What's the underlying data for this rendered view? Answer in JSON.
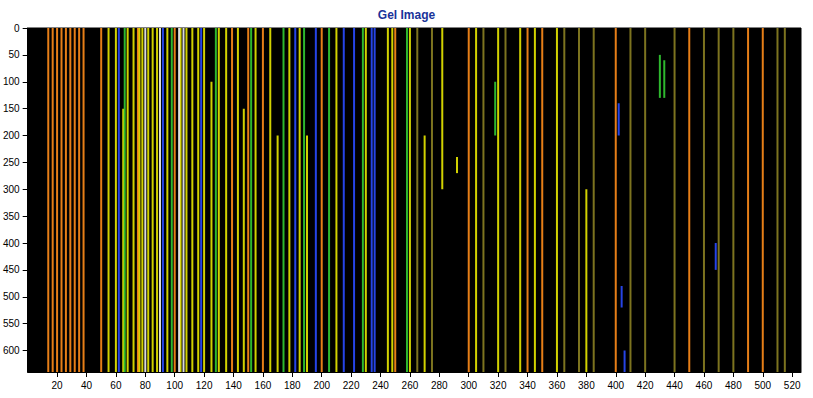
{
  "chart_data": {
    "type": "gel",
    "title": "Gel Image",
    "xlim": [
      0,
      526
    ],
    "ylim": [
      0,
      640
    ],
    "xticks": [
      20,
      40,
      60,
      80,
      100,
      120,
      140,
      160,
      180,
      200,
      220,
      240,
      260,
      280,
      300,
      320,
      340,
      360,
      380,
      400,
      420,
      440,
      460,
      480,
      500,
      520
    ],
    "yticks": [
      0,
      50,
      100,
      150,
      200,
      250,
      300,
      350,
      400,
      450,
      500,
      550,
      600
    ],
    "grid": false,
    "bands": [
      {
        "x": 14,
        "from": 0,
        "to": 640,
        "color": "#ff8c1a"
      },
      {
        "x": 17,
        "from": 0,
        "to": 640,
        "color": "#ff8c1a"
      },
      {
        "x": 20,
        "from": 0,
        "to": 640,
        "color": "#ff8c1a"
      },
      {
        "x": 23,
        "from": 0,
        "to": 640,
        "color": "#ff8c1a"
      },
      {
        "x": 26,
        "from": 0,
        "to": 640,
        "color": "#ff8c1a"
      },
      {
        "x": 29,
        "from": 0,
        "to": 640,
        "color": "#ff8c1a"
      },
      {
        "x": 32,
        "from": 0,
        "to": 640,
        "color": "#ff8c1a"
      },
      {
        "x": 35,
        "from": 0,
        "to": 640,
        "color": "#ff8c1a"
      },
      {
        "x": 38,
        "from": 0,
        "to": 640,
        "color": "#ff8c1a"
      },
      {
        "x": 50,
        "from": 0,
        "to": 640,
        "color": "#ff8c1a"
      },
      {
        "x": 75,
        "from": 0,
        "to": 640,
        "color": "#ff8c1a"
      },
      {
        "x": 100,
        "from": 0,
        "to": 640,
        "color": "#ff8c1a"
      },
      {
        "x": 139,
        "from": 0,
        "to": 640,
        "color": "#ff8c1a"
      },
      {
        "x": 150,
        "from": 0,
        "to": 640,
        "color": "#ff8c1a"
      },
      {
        "x": 160,
        "from": 0,
        "to": 640,
        "color": "#ff8c1a"
      },
      {
        "x": 200,
        "from": 0,
        "to": 640,
        "color": "#ff8c1a"
      },
      {
        "x": 250,
        "from": 0,
        "to": 640,
        "color": "#ff8c1a"
      },
      {
        "x": 300,
        "from": 0,
        "to": 640,
        "color": "#ff8c1a"
      },
      {
        "x": 340,
        "from": 0,
        "to": 640,
        "color": "#ff8c1a"
      },
      {
        "x": 350,
        "from": 0,
        "to": 640,
        "color": "#ff8c1a"
      },
      {
        "x": 400,
        "from": 0,
        "to": 640,
        "color": "#ff8c1a"
      },
      {
        "x": 450,
        "from": 0,
        "to": 640,
        "color": "#ff8c1a"
      },
      {
        "x": 490,
        "from": 0,
        "to": 640,
        "color": "#ff8c1a"
      },
      {
        "x": 500,
        "from": 0,
        "to": 640,
        "color": "#ff8c1a"
      },
      {
        "x": 55,
        "from": 0,
        "to": 640,
        "color": "#e8e800"
      },
      {
        "x": 60,
        "from": 0,
        "to": 640,
        "color": "#e8e800"
      },
      {
        "x": 65,
        "from": 150,
        "to": 640,
        "color": "#e8e800"
      },
      {
        "x": 68,
        "from": 0,
        "to": 640,
        "color": "#e8e800"
      },
      {
        "x": 72,
        "from": 0,
        "to": 640,
        "color": "#e8e800"
      },
      {
        "x": 76,
        "from": 0,
        "to": 640,
        "color": "#e8e800"
      },
      {
        "x": 78,
        "from": 0,
        "to": 640,
        "color": "#e8e800"
      },
      {
        "x": 82,
        "from": 0,
        "to": 640,
        "color": "#e8e800"
      },
      {
        "x": 85,
        "from": 0,
        "to": 640,
        "color": "#e8e800"
      },
      {
        "x": 88,
        "from": 0,
        "to": 640,
        "color": "#e8e800"
      },
      {
        "x": 95,
        "from": 0,
        "to": 640,
        "color": "#e8e800"
      },
      {
        "x": 104,
        "from": 0,
        "to": 640,
        "color": "#e8e800"
      },
      {
        "x": 108,
        "from": 0,
        "to": 640,
        "color": "#e8e800"
      },
      {
        "x": 112,
        "from": 0,
        "to": 640,
        "color": "#e8e800"
      },
      {
        "x": 116,
        "from": 0,
        "to": 640,
        "color": "#e8e800"
      },
      {
        "x": 120,
        "from": 0,
        "to": 640,
        "color": "#e8e800"
      },
      {
        "x": 125,
        "from": 100,
        "to": 640,
        "color": "#e8e800"
      },
      {
        "x": 130,
        "from": 0,
        "to": 640,
        "color": "#e8e800"
      },
      {
        "x": 135,
        "from": 0,
        "to": 640,
        "color": "#e8e800"
      },
      {
        "x": 143,
        "from": 0,
        "to": 640,
        "color": "#e8e800"
      },
      {
        "x": 147,
        "from": 150,
        "to": 640,
        "color": "#e8e800"
      },
      {
        "x": 155,
        "from": 0,
        "to": 640,
        "color": "#e8e800"
      },
      {
        "x": 165,
        "from": 0,
        "to": 640,
        "color": "#e8e800"
      },
      {
        "x": 170,
        "from": 200,
        "to": 640,
        "color": "#e8e800"
      },
      {
        "x": 178,
        "from": 0,
        "to": 640,
        "color": "#e8e800"
      },
      {
        "x": 185,
        "from": 0,
        "to": 640,
        "color": "#e8e800"
      },
      {
        "x": 190,
        "from": 200,
        "to": 640,
        "color": "#e8e800"
      },
      {
        "x": 210,
        "from": 0,
        "to": 640,
        "color": "#e8e800"
      },
      {
        "x": 230,
        "from": 0,
        "to": 640,
        "color": "#e8e800"
      },
      {
        "x": 245,
        "from": 0,
        "to": 640,
        "color": "#e8e800"
      },
      {
        "x": 248,
        "from": 0,
        "to": 640,
        "color": "#e8e800"
      },
      {
        "x": 260,
        "from": 0,
        "to": 640,
        "color": "#e8e800"
      },
      {
        "x": 270,
        "from": 200,
        "to": 640,
        "color": "#e8e800"
      },
      {
        "x": 282,
        "from": 0,
        "to": 300,
        "color": "#e8e800"
      },
      {
        "x": 292,
        "from": 240,
        "to": 270,
        "color": "#e8e800"
      },
      {
        "x": 305,
        "from": 0,
        "to": 640,
        "color": "#e8e800"
      },
      {
        "x": 320,
        "from": 0,
        "to": 640,
        "color": "#e8e800"
      },
      {
        "x": 335,
        "from": 0,
        "to": 640,
        "color": "#e8e800"
      },
      {
        "x": 345,
        "from": 0,
        "to": 640,
        "color": "#e8e800"
      },
      {
        "x": 360,
        "from": 0,
        "to": 640,
        "color": "#e8e800"
      },
      {
        "x": 380,
        "from": 300,
        "to": 640,
        "color": "#e8e800"
      },
      {
        "x": 80,
        "from": 0,
        "to": 640,
        "color": "#f2f2f2"
      },
      {
        "x": 90,
        "from": 0,
        "to": 640,
        "color": "#f2f2f2"
      },
      {
        "x": 103,
        "from": 0,
        "to": 640,
        "color": "#f2f2f2"
      },
      {
        "x": 106,
        "from": 0,
        "to": 640,
        "color": "#f2f2f2"
      },
      {
        "x": 62,
        "from": 0,
        "to": 640,
        "color": "#2a4bff"
      },
      {
        "x": 92,
        "from": 0,
        "to": 640,
        "color": "#2a4bff"
      },
      {
        "x": 118,
        "from": 0,
        "to": 640,
        "color": "#2a4bff"
      },
      {
        "x": 182,
        "from": 0,
        "to": 640,
        "color": "#2a4bff"
      },
      {
        "x": 196,
        "from": 0,
        "to": 640,
        "color": "#2a4bff"
      },
      {
        "x": 215,
        "from": 0,
        "to": 640,
        "color": "#2a4bff"
      },
      {
        "x": 222,
        "from": 0,
        "to": 640,
        "color": "#2a4bff"
      },
      {
        "x": 234,
        "from": 0,
        "to": 640,
        "color": "#2a4bff"
      },
      {
        "x": 236,
        "from": 0,
        "to": 640,
        "color": "#2a4bff"
      },
      {
        "x": 402,
        "from": 140,
        "to": 200,
        "color": "#2a4bff"
      },
      {
        "x": 404,
        "from": 480,
        "to": 520,
        "color": "#2a4bff"
      },
      {
        "x": 406,
        "from": 600,
        "to": 640,
        "color": "#2a4bff"
      },
      {
        "x": 468,
        "from": 400,
        "to": 450,
        "color": "#2a4bff"
      },
      {
        "x": 66,
        "from": 0,
        "to": 640,
        "color": "#33cc33"
      },
      {
        "x": 98,
        "from": 0,
        "to": 640,
        "color": "#33cc33"
      },
      {
        "x": 128,
        "from": 0,
        "to": 640,
        "color": "#33cc33"
      },
      {
        "x": 152,
        "from": 0,
        "to": 640,
        "color": "#33cc33"
      },
      {
        "x": 174,
        "from": 0,
        "to": 640,
        "color": "#33cc33"
      },
      {
        "x": 188,
        "from": 0,
        "to": 640,
        "color": "#33cc33"
      },
      {
        "x": 205,
        "from": 0,
        "to": 640,
        "color": "#33cc33"
      },
      {
        "x": 228,
        "from": 0,
        "to": 640,
        "color": "#33cc33"
      },
      {
        "x": 258,
        "from": 0,
        "to": 640,
        "color": "#33cc33"
      },
      {
        "x": 430,
        "from": 50,
        "to": 130,
        "color": "#33cc33"
      },
      {
        "x": 433,
        "from": 60,
        "to": 130,
        "color": "#33cc33"
      },
      {
        "x": 318,
        "from": 100,
        "to": 200,
        "color": "#33cc33"
      },
      {
        "x": 265,
        "from": 0,
        "to": 640,
        "color": "#8a7f22"
      },
      {
        "x": 275,
        "from": 0,
        "to": 640,
        "color": "#8a7f22"
      },
      {
        "x": 310,
        "from": 0,
        "to": 640,
        "color": "#8a7f22"
      },
      {
        "x": 325,
        "from": 0,
        "to": 640,
        "color": "#8a7f22"
      },
      {
        "x": 365,
        "from": 0,
        "to": 640,
        "color": "#8a7f22"
      },
      {
        "x": 375,
        "from": 0,
        "to": 640,
        "color": "#8a7f22"
      },
      {
        "x": 385,
        "from": 0,
        "to": 640,
        "color": "#8a7f22"
      },
      {
        "x": 410,
        "from": 0,
        "to": 640,
        "color": "#8a7f22"
      },
      {
        "x": 420,
        "from": 0,
        "to": 640,
        "color": "#8a7f22"
      },
      {
        "x": 440,
        "from": 0,
        "to": 640,
        "color": "#8a7f22"
      },
      {
        "x": 460,
        "from": 0,
        "to": 640,
        "color": "#8a7f22"
      },
      {
        "x": 470,
        "from": 0,
        "to": 640,
        "color": "#8a7f22"
      },
      {
        "x": 480,
        "from": 0,
        "to": 640,
        "color": "#8a7f22"
      },
      {
        "x": 510,
        "from": 0,
        "to": 640,
        "color": "#8a7f22"
      },
      {
        "x": 515,
        "from": 0,
        "to": 640,
        "color": "#8a7f22"
      }
    ]
  }
}
